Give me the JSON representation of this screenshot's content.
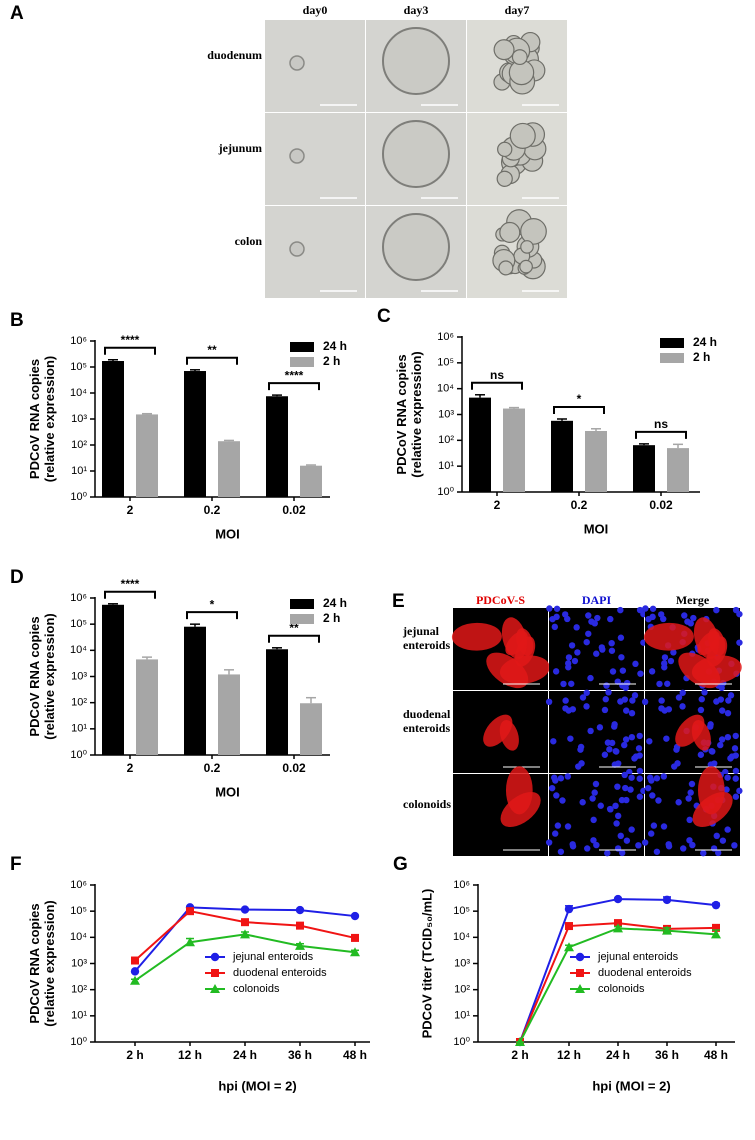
{
  "panel_a": {
    "label": "A",
    "columns": [
      "day0",
      "day3",
      "day7"
    ],
    "rows": [
      "duodenum",
      "jejunum",
      "colon"
    ]
  },
  "panel_e": {
    "label": "E",
    "columns": [
      "PDCoV-S",
      "DAPI",
      "Merge"
    ],
    "rows": [
      [
        "jejunal",
        "enteroids"
      ],
      [
        "duodenal",
        "enteroids"
      ],
      [
        "colonoids"
      ]
    ]
  },
  "chart_data": [
    {
      "type": "bar",
      "label": "B",
      "ylabel": [
        "PDCoV RNA copies",
        "(relative expression)"
      ],
      "xlabel": "MOI",
      "categories": [
        "2",
        "0.2",
        "0.02"
      ],
      "log_scale": true,
      "legend": "upper right",
      "series": [
        {
          "name": "24 h",
          "color": "#000000",
          "values": [
            170000,
            70000,
            7500
          ],
          "errors": [
            20000,
            8000,
            800
          ]
        },
        {
          "name": "2 h",
          "color": "#a6a6a6",
          "values": [
            1500,
            140,
            16
          ],
          "errors": [
            100,
            10,
            1
          ]
        }
      ],
      "significance": [
        "****",
        "**",
        "****"
      ],
      "ylim": [
        1,
        1000000
      ],
      "yticks": [
        {
          "value": 1,
          "label": "10⁰"
        },
        {
          "value": 10,
          "label": "10¹"
        },
        {
          "value": 100,
          "label": "10²"
        },
        {
          "value": 1000,
          "label": "10³"
        },
        {
          "value": 10000,
          "label": "10⁴"
        },
        {
          "value": 100000,
          "label": "10⁵"
        },
        {
          "value": 1000000,
          "label": "10⁶"
        }
      ]
    },
    {
      "type": "bar",
      "label": "C",
      "ylabel": [
        "PDCoV RNA copies",
        "(relative expression)"
      ],
      "xlabel": "MOI",
      "categories": [
        "2",
        "0.2",
        "0.02"
      ],
      "log_scale": true,
      "legend": "upper right",
      "series": [
        {
          "name": "24 h",
          "color": "#000000",
          "values": [
            4500,
            570,
            65
          ],
          "errors": [
            1300,
            100,
            8
          ]
        },
        {
          "name": "2 h",
          "color": "#a6a6a6",
          "values": [
            1700,
            230,
            50
          ],
          "errors": [
            150,
            50,
            20
          ]
        }
      ],
      "significance": [
        "ns",
        "*",
        "ns"
      ],
      "ylim": [
        1,
        1000000
      ],
      "yticks": [
        {
          "value": 1,
          "label": "10⁰"
        },
        {
          "value": 10,
          "label": "10¹"
        },
        {
          "value": 100,
          "label": "10²"
        },
        {
          "value": 1000,
          "label": "10³"
        },
        {
          "value": 10000,
          "label": "10⁴"
        },
        {
          "value": 100000,
          "label": "10⁵"
        },
        {
          "value": 1000000,
          "label": "10⁶"
        }
      ]
    },
    {
      "type": "bar",
      "label": "D",
      "ylabel": [
        "PDCoV RNA copies",
        "(relative expression)"
      ],
      "xlabel": "MOI",
      "categories": [
        "2",
        "0.2",
        "0.02"
      ],
      "log_scale": true,
      "legend": "upper right",
      "series": [
        {
          "name": "24 h",
          "color": "#000000",
          "values": [
            550000,
            80000,
            11000
          ],
          "errors": [
            50000,
            20000,
            1500
          ]
        },
        {
          "name": "2 h",
          "color": "#a6a6a6",
          "values": [
            4500,
            1200,
            95
          ],
          "errors": [
            1000,
            600,
            60
          ]
        }
      ],
      "significance": [
        "****",
        "*",
        "**"
      ],
      "ylim": [
        1,
        1000000
      ],
      "yticks": [
        {
          "value": 1,
          "label": "10⁰"
        },
        {
          "value": 10,
          "label": "10¹"
        },
        {
          "value": 100,
          "label": "10²"
        },
        {
          "value": 1000,
          "label": "10³"
        },
        {
          "value": 10000,
          "label": "10⁴"
        },
        {
          "value": 100000,
          "label": "10⁵"
        },
        {
          "value": 1000000,
          "label": "10⁶"
        }
      ]
    },
    {
      "type": "line",
      "label": "F",
      "ylabel": [
        "PDCoV RNA copies",
        "(relative expression)"
      ],
      "xlabel": "hpi (MOI = 2)",
      "categories": [
        "2 h",
        "12 h",
        "24 h",
        "36 h",
        "48 h"
      ],
      "log_scale": true,
      "legend": "lower right",
      "series": [
        {
          "name": "jejunal enteroids",
          "color": "#1f1fe6",
          "marker": "circle",
          "values": [
            500,
            140000,
            115000,
            110000,
            65000
          ],
          "errors": [
            0,
            10000,
            8000,
            8000,
            5000
          ]
        },
        {
          "name": "duodenal enteroids",
          "color": "#f01414",
          "marker": "square",
          "values": [
            1300,
            100000,
            38000,
            28000,
            9500
          ],
          "errors": [
            100,
            8000,
            4000,
            8000,
            1500
          ]
        },
        {
          "name": "colonoids",
          "color": "#22bb22",
          "marker": "triangle",
          "values": [
            220,
            6500,
            13000,
            4700,
            2700
          ],
          "errors": [
            30,
            2500,
            3000,
            1000,
            500
          ]
        }
      ],
      "ylim": [
        1,
        1000000
      ],
      "yticks": [
        {
          "value": 1,
          "label": "10⁰"
        },
        {
          "value": 10,
          "label": "10¹"
        },
        {
          "value": 100,
          "label": "10²"
        },
        {
          "value": 1000,
          "label": "10³"
        },
        {
          "value": 10000,
          "label": "10⁴"
        },
        {
          "value": 100000,
          "label": "10⁵"
        },
        {
          "value": 1000000,
          "label": "10⁶"
        }
      ]
    },
    {
      "type": "line",
      "label": "G",
      "ylabel": [
        "PDCoV titer (TCID₅₀/mL)"
      ],
      "xlabel": "hpi (MOI = 2)",
      "categories": [
        "2 h",
        "12 h",
        "24 h",
        "36 h",
        "48 h"
      ],
      "log_scale": true,
      "legend": "lower right",
      "series": [
        {
          "name": "jejunal enteroids",
          "color": "#1f1fe6",
          "marker": "circle",
          "values": [
            1,
            120000,
            290000,
            270000,
            170000
          ],
          "errors": [
            0,
            40000,
            20000,
            80000,
            30000
          ]
        },
        {
          "name": "duodenal enteroids",
          "color": "#f01414",
          "marker": "square",
          "values": [
            1,
            27000,
            35000,
            21000,
            23000
          ],
          "errors": [
            0,
            3000,
            4000,
            4000,
            4000
          ]
        },
        {
          "name": "colonoids",
          "color": "#22bb22",
          "marker": "triangle",
          "values": [
            1,
            4200,
            22000,
            18000,
            13000
          ],
          "errors": [
            0,
            800,
            4000,
            5000,
            6000
          ]
        }
      ],
      "ylim": [
        1,
        1000000
      ],
      "yticks": [
        {
          "value": 1,
          "label": "10⁰"
        },
        {
          "value": 10,
          "label": "10¹"
        },
        {
          "value": 100,
          "label": "10²"
        },
        {
          "value": 1000,
          "label": "10³"
        },
        {
          "value": 10000,
          "label": "10⁴"
        },
        {
          "value": 100000,
          "label": "10⁵"
        },
        {
          "value": 1000000,
          "label": "10⁶"
        }
      ]
    }
  ]
}
